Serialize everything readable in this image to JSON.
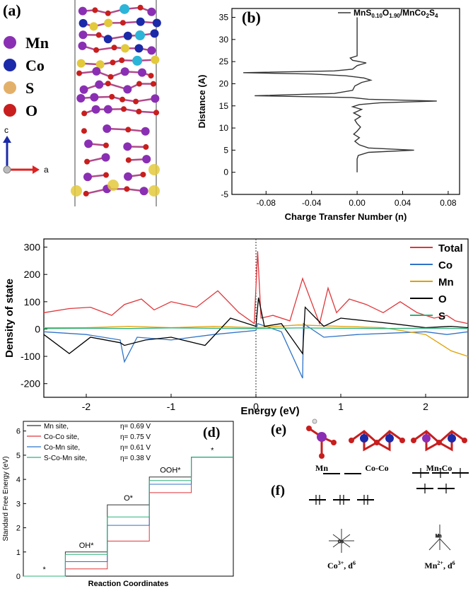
{
  "panel_a": {
    "label": "(a)",
    "legend": [
      {
        "name": "Mn",
        "color": "#8a2fb3"
      },
      {
        "name": "Co",
        "color": "#1b2aa8"
      },
      {
        "name": "S",
        "color": "#e3b06a"
      },
      {
        "name": "O",
        "color": "#c81e1e"
      }
    ],
    "axis_c": "c",
    "axis_a": "a"
  },
  "panel_b": {
    "label": "(b)",
    "legend": "MnS0.10O1.90/MnCo2S4",
    "legend_parts": [
      "MnS",
      "0.10",
      "O",
      "1.90",
      "/MnCo",
      "2",
      "S",
      "4"
    ]
  },
  "panel_d_title": "(d)",
  "panel_e": {
    "label": "(e)",
    "sites": [
      "Mn",
      "Co-Co",
      "Mn-Co"
    ]
  },
  "panel_f": {
    "label": "(f)",
    "ions": [
      "Co3+, d6",
      "Mn2+, d6"
    ],
    "centers": [
      "Co",
      "Mn"
    ],
    "ion_parts": [
      [
        "Co",
        "3+",
        ", d",
        "6"
      ],
      [
        "Mn",
        "2+",
        ", d",
        "6"
      ]
    ]
  },
  "chart_data": [
    {
      "id": "b",
      "type": "line",
      "title": "",
      "xlabel": "Charge Transfer Number (n)",
      "ylabel": "Distance (A)",
      "xlim": [
        -0.11,
        0.09
      ],
      "ylim": [
        -5,
        37
      ],
      "xticks": [
        -0.08,
        -0.04,
        0.0,
        0.04,
        0.08
      ],
      "xtick_labels": [
        "-0.08",
        "-0.04",
        "0.00",
        "0.04",
        "0.08"
      ],
      "yticks": [
        -5,
        0,
        5,
        10,
        15,
        20,
        25,
        30,
        35
      ],
      "series": [
        {
          "name": "MnS0.10O1.90/MnCo2S4",
          "points": [
            [
              0.0,
              0
            ],
            [
              0.0,
              3
            ],
            [
              0.001,
              3.8
            ],
            [
              0.01,
              4.5
            ],
            [
              0.05,
              5.0
            ],
            [
              0.01,
              5.5
            ],
            [
              0.002,
              6.2
            ],
            [
              -0.002,
              7
            ],
            [
              0.002,
              7.8
            ],
            [
              -0.003,
              8.6
            ],
            [
              0.0,
              9.3
            ],
            [
              0.003,
              10.2
            ],
            [
              0.0,
              11
            ],
            [
              -0.002,
              11.8
            ],
            [
              0.003,
              12.6
            ],
            [
              -0.003,
              13.4
            ],
            [
              0.004,
              14.2
            ],
            [
              -0.004,
              14.8
            ],
            [
              0.002,
              15.3
            ],
            [
              0.02,
              15.7
            ],
            [
              0.07,
              16.1
            ],
            [
              0.01,
              16.5
            ],
            [
              -0.005,
              16.9
            ],
            [
              -0.09,
              17.3
            ],
            [
              -0.02,
              17.8
            ],
            [
              -0.004,
              18.5
            ],
            [
              -0.002,
              19.5
            ],
            [
              0.004,
              20.3
            ],
            [
              0.012,
              20.8
            ],
            [
              0.006,
              21.3
            ],
            [
              -0.01,
              21.8
            ],
            [
              -0.04,
              22.2
            ],
            [
              -0.1,
              22.5
            ],
            [
              -0.02,
              22.9
            ],
            [
              -0.004,
              23.3
            ],
            [
              0.0,
              24.1
            ],
            [
              0.008,
              24.7
            ],
            [
              -0.004,
              25.3
            ],
            [
              -0.006,
              25.8
            ],
            [
              0.0,
              26.3
            ],
            [
              0.0,
              35
            ]
          ]
        }
      ]
    },
    {
      "id": "c",
      "type": "line",
      "title": "",
      "xlabel": "Energy (eV)",
      "ylabel": "Density of state",
      "xlim": [
        -2.5,
        2.5
      ],
      "ylim": [
        -250,
        330
      ],
      "xticks": [
        -2,
        -1,
        0,
        1,
        2
      ],
      "yticks": [
        -200,
        -100,
        0,
        100,
        200,
        300
      ],
      "fermi_level": 0,
      "series": [
        {
          "name": "Total",
          "color": "#e0363a",
          "x": [
            -2.5,
            -2.2,
            -1.95,
            -1.7,
            -1.55,
            -1.35,
            -1.2,
            -1.0,
            -0.7,
            -0.45,
            -0.2,
            -0.02,
            0.02,
            0.06,
            0.2,
            0.4,
            0.55,
            0.75,
            0.85,
            0.95,
            1.1,
            1.3,
            1.5,
            1.7,
            1.9,
            2.1,
            2.25,
            2.35,
            2.5
          ],
          "y": [
            60,
            75,
            80,
            50,
            90,
            110,
            70,
            100,
            80,
            140,
            60,
            20,
            285,
            40,
            50,
            30,
            185,
            20,
            150,
            60,
            110,
            90,
            60,
            100,
            60,
            40,
            50,
            30,
            20
          ]
        },
        {
          "name": "Co",
          "color": "#2f73c8",
          "x": [
            -2.5,
            -2.0,
            -1.6,
            -1.55,
            -1.4,
            -1.0,
            -0.5,
            0.0,
            0.02,
            0.3,
            0.55,
            0.56,
            0.8,
            1.2,
            1.6,
            2.0,
            2.25,
            2.5
          ],
          "y": [
            -10,
            -20,
            -40,
            -120,
            -30,
            -40,
            -20,
            -5,
            20,
            -10,
            -180,
            20,
            -30,
            -20,
            -15,
            -10,
            -20,
            -10
          ]
        },
        {
          "name": "Mn",
          "color": "#e0a000",
          "x": [
            -2.5,
            -2.0,
            -1.5,
            -1.0,
            -0.5,
            0.0,
            0.5,
            1.0,
            1.5,
            2.0,
            2.2,
            2.3,
            2.4,
            2.5
          ],
          "y": [
            5,
            5,
            10,
            5,
            10,
            5,
            15,
            10,
            5,
            -20,
            -60,
            -80,
            -90,
            -100
          ]
        },
        {
          "name": "O",
          "color": "#000000",
          "x": [
            -2.5,
            -2.2,
            -1.95,
            -1.6,
            -1.55,
            -1.3,
            -1.0,
            -0.6,
            -0.3,
            0.0,
            0.03,
            0.1,
            0.3,
            0.55,
            0.58,
            0.8,
            1.0,
            1.3,
            1.6,
            2.0,
            2.3,
            2.5
          ],
          "y": [
            -20,
            -90,
            -30,
            -50,
            -60,
            -40,
            -30,
            -60,
            40,
            10,
            115,
            10,
            20,
            -90,
            80,
            10,
            40,
            30,
            20,
            5,
            10,
            5
          ]
        },
        {
          "name": "S",
          "color": "#2cb27a",
          "x": [
            -2.5,
            -2.0,
            -1.5,
            -1.0,
            -0.5,
            0.0,
            0.5,
            1.0,
            1.5,
            2.0,
            2.5
          ],
          "y": [
            2,
            3,
            2,
            4,
            3,
            2,
            4,
            3,
            2,
            3,
            2
          ]
        }
      ],
      "legend": [
        "Total",
        "Co",
        "Mn",
        "O",
        "S"
      ],
      "legend_position": "top-right"
    },
    {
      "id": "d",
      "type": "line",
      "title": "",
      "xlabel": "Reaction Coordinates",
      "ylabel": "Standard Free Energy (eV)",
      "ylim": [
        0,
        6.4
      ],
      "yticks": [
        0,
        1,
        2,
        3,
        4,
        5,
        6
      ],
      "steps": [
        "*",
        "OH*",
        "O*",
        "OOH*",
        "*"
      ],
      "series": [
        {
          "name": "Mn site,",
          "eta": "η= 0.69 V",
          "color": "#333333",
          "values": [
            0,
            1.0,
            2.95,
            4.1,
            4.92
          ]
        },
        {
          "name": "Co-Co site,",
          "eta": "η= 0.75 V",
          "color": "#e0363a",
          "values": [
            0,
            0.3,
            1.45,
            3.45,
            4.92
          ]
        },
        {
          "name": "Co-Mn site,",
          "eta": "η= 0.61 V",
          "color": "#2f73c8",
          "values": [
            0,
            0.6,
            2.1,
            3.8,
            4.92
          ]
        },
        {
          "name": "S-Co-Mn site,",
          "eta": "η= 0.38 V",
          "color": "#2cb27a",
          "values": [
            0,
            0.9,
            2.45,
            3.95,
            4.92
          ]
        }
      ],
      "legend_position": "top-left"
    }
  ]
}
